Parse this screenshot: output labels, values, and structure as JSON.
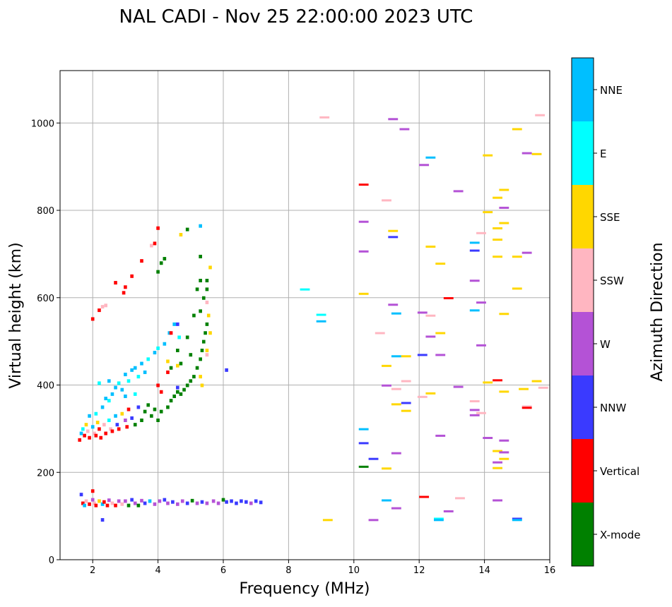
{
  "chart_data": {
    "type": "scatter",
    "title": "NAL CADI - Nov 25 22:00:00 2023 UTC",
    "xlabel": "Frequency (MHz)",
    "ylabel": "Virtual height (km)",
    "xlim": [
      1,
      16
    ],
    "ylim": [
      0,
      1120
    ],
    "xticks": [
      2,
      4,
      6,
      8,
      10,
      12,
      14,
      16
    ],
    "yticks": [
      0,
      200,
      400,
      600,
      800,
      1000
    ],
    "grid": true,
    "colorbar": {
      "label": "Azimuth Direction",
      "categories": [
        "X-mode",
        "Vertical",
        "NNW",
        "W",
        "SSW",
        "SSE",
        "E",
        "NNE"
      ],
      "colors": [
        "#008000",
        "#ff0000",
        "#3a3aff",
        "#b452d6",
        "#ffb6c1",
        "#ffd700",
        "#00ffff",
        "#00bfff"
      ]
    },
    "point_fields": [
      "frequency_mhz",
      "height_km",
      "direction_index"
    ],
    "points": [
      [
        1.65,
        150,
        2
      ],
      [
        1.7,
        130,
        1
      ],
      [
        1.75,
        125,
        7
      ],
      [
        1.8,
        135,
        4
      ],
      [
        1.9,
        128,
        1
      ],
      [
        2.0,
        138,
        3
      ],
      [
        2.05,
        130,
        4
      ],
      [
        2.1,
        125,
        1
      ],
      [
        2.2,
        135,
        5
      ],
      [
        2.3,
        128,
        7
      ],
      [
        2.35,
        133,
        1
      ],
      [
        2.45,
        125,
        1
      ],
      [
        2.5,
        137,
        3
      ],
      [
        2.6,
        130,
        4
      ],
      [
        2.7,
        125,
        1
      ],
      [
        2.8,
        135,
        3
      ],
      [
        2.9,
        128,
        4
      ],
      [
        3.0,
        135,
        3
      ],
      [
        3.1,
        125,
        0
      ],
      [
        3.2,
        138,
        2
      ],
      [
        3.3,
        130,
        3
      ],
      [
        3.4,
        125,
        0
      ],
      [
        3.5,
        136,
        3
      ],
      [
        3.6,
        130,
        2
      ],
      [
        3.75,
        135,
        7
      ],
      [
        3.9,
        128,
        3
      ],
      [
        4.05,
        135,
        3
      ],
      [
        4.2,
        138,
        2
      ],
      [
        4.3,
        130,
        3
      ],
      [
        4.45,
        133,
        2
      ],
      [
        4.6,
        128,
        3
      ],
      [
        4.75,
        135,
        3
      ],
      [
        4.9,
        130,
        2
      ],
      [
        5.05,
        136,
        0
      ],
      [
        5.2,
        130,
        3
      ],
      [
        5.35,
        133,
        2
      ],
      [
        5.5,
        130,
        3
      ],
      [
        5.7,
        135,
        3
      ],
      [
        5.85,
        130,
        3
      ],
      [
        6.0,
        138,
        0
      ],
      [
        6.1,
        133,
        2
      ],
      [
        6.25,
        135,
        2
      ],
      [
        6.4,
        130,
        2
      ],
      [
        6.55,
        135,
        2
      ],
      [
        6.7,
        133,
        2
      ],
      [
        6.85,
        130,
        3
      ],
      [
        7.0,
        135,
        2
      ],
      [
        7.15,
        132,
        2
      ],
      [
        2.3,
        92,
        2
      ],
      [
        2.0,
        158,
        1
      ],
      [
        1.6,
        275,
        1
      ],
      [
        1.65,
        290,
        7
      ],
      [
        1.7,
        300,
        6
      ],
      [
        1.75,
        285,
        1
      ],
      [
        1.8,
        310,
        5
      ],
      [
        1.85,
        295,
        4
      ],
      [
        1.9,
        280,
        1
      ],
      [
        2.0,
        305,
        7
      ],
      [
        2.05,
        290,
        4
      ],
      [
        2.1,
        285,
        1
      ],
      [
        2.15,
        315,
        5
      ],
      [
        2.2,
        300,
        1
      ],
      [
        2.25,
        280,
        1
      ],
      [
        2.35,
        310,
        4
      ],
      [
        2.4,
        290,
        1
      ],
      [
        2.5,
        320,
        6
      ],
      [
        2.55,
        300,
        4
      ],
      [
        2.6,
        295,
        1
      ],
      [
        2.7,
        330,
        7
      ],
      [
        2.75,
        310,
        2
      ],
      [
        2.8,
        300,
        1
      ],
      [
        2.9,
        335,
        5
      ],
      [
        3.0,
        320,
        3
      ],
      [
        3.05,
        305,
        1
      ],
      [
        3.1,
        345,
        1
      ],
      [
        3.2,
        325,
        2
      ],
      [
        3.3,
        310,
        0
      ],
      [
        3.4,
        350,
        2
      ],
      [
        3.5,
        320,
        0
      ],
      [
        3.6,
        340,
        0
      ],
      [
        3.7,
        355,
        0
      ],
      [
        3.8,
        330,
        0
      ],
      [
        3.9,
        345,
        0
      ],
      [
        4.0,
        320,
        0
      ],
      [
        1.9,
        330,
        7
      ],
      [
        2.1,
        335,
        6
      ],
      [
        2.3,
        350,
        7
      ],
      [
        2.4,
        370,
        7
      ],
      [
        2.5,
        365,
        6
      ],
      [
        2.6,
        380,
        7
      ],
      [
        2.7,
        395,
        7
      ],
      [
        2.8,
        405,
        6
      ],
      [
        2.9,
        390,
        7
      ],
      [
        3.0,
        425,
        7
      ],
      [
        3.1,
        410,
        6
      ],
      [
        3.2,
        435,
        7
      ],
      [
        3.3,
        440,
        7
      ],
      [
        3.4,
        420,
        6
      ],
      [
        3.5,
        450,
        7
      ],
      [
        3.6,
        430,
        7
      ],
      [
        3.7,
        460,
        6
      ],
      [
        3.9,
        475,
        7
      ],
      [
        4.0,
        485,
        6
      ],
      [
        4.2,
        495,
        7
      ],
      [
        4.35,
        520,
        7
      ],
      [
        4.5,
        540,
        7
      ],
      [
        4.65,
        510,
        6
      ],
      [
        2.2,
        405,
        6
      ],
      [
        2.5,
        410,
        7
      ],
      [
        3.0,
        375,
        7
      ],
      [
        3.3,
        380,
        6
      ],
      [
        4.1,
        340,
        0
      ],
      [
        4.3,
        350,
        0
      ],
      [
        4.4,
        365,
        0
      ],
      [
        4.5,
        375,
        0
      ],
      [
        4.6,
        385,
        0
      ],
      [
        4.7,
        380,
        0
      ],
      [
        4.8,
        390,
        0
      ],
      [
        4.9,
        400,
        0
      ],
      [
        5.0,
        410,
        0
      ],
      [
        5.1,
        420,
        0
      ],
      [
        5.2,
        440,
        0
      ],
      [
        5.3,
        460,
        0
      ],
      [
        5.35,
        480,
        0
      ],
      [
        5.4,
        500,
        0
      ],
      [
        5.45,
        520,
        0
      ],
      [
        5.5,
        540,
        0
      ],
      [
        5.3,
        570,
        0
      ],
      [
        5.4,
        600,
        0
      ],
      [
        5.3,
        640,
        0
      ],
      [
        5.2,
        620,
        0
      ],
      [
        5.5,
        620,
        0
      ],
      [
        5.1,
        560,
        0
      ],
      [
        4.9,
        510,
        0
      ],
      [
        4.6,
        480,
        0
      ],
      [
        4.4,
        440,
        0
      ],
      [
        4.7,
        450,
        0
      ],
      [
        5.0,
        470,
        0
      ],
      [
        5.3,
        420,
        5
      ],
      [
        5.5,
        480,
        5
      ],
      [
        5.6,
        520,
        5
      ],
      [
        5.35,
        400,
        5
      ],
      [
        5.55,
        560,
        5
      ],
      [
        5.6,
        670,
        5
      ],
      [
        4.6,
        445,
        5
      ],
      [
        4.3,
        455,
        5
      ],
      [
        5.5,
        470,
        4
      ],
      [
        5.5,
        590,
        4
      ],
      [
        2.0,
        552,
        1
      ],
      [
        2.2,
        572,
        1
      ],
      [
        2.3,
        580,
        4
      ],
      [
        2.4,
        583,
        4
      ],
      [
        2.7,
        635,
        1
      ],
      [
        2.95,
        612,
        1
      ],
      [
        3.0,
        625,
        1
      ],
      [
        3.2,
        650,
        1
      ],
      [
        3.5,
        685,
        1
      ],
      [
        3.8,
        720,
        4
      ],
      [
        3.9,
        725,
        1
      ],
      [
        4.0,
        760,
        1
      ],
      [
        4.2,
        690,
        0
      ],
      [
        4.1,
        680,
        0
      ],
      [
        4.0,
        660,
        0
      ],
      [
        4.7,
        745,
        5
      ],
      [
        4.9,
        757,
        0
      ],
      [
        5.3,
        765,
        7
      ],
      [
        5.3,
        695,
        0
      ],
      [
        5.5,
        640,
        0
      ],
      [
        4.6,
        540,
        2
      ],
      [
        4.4,
        520,
        1
      ],
      [
        4.0,
        400,
        1
      ],
      [
        4.3,
        430,
        1
      ],
      [
        4.1,
        385,
        1
      ],
      [
        4.6,
        395,
        2
      ],
      [
        6.1,
        435,
        2
      ],
      [
        8.5,
        618,
        6
      ],
      [
        9.0,
        560,
        6
      ],
      [
        9.0,
        545,
        7
      ],
      [
        9.2,
        90,
        5
      ],
      [
        9.1,
        1012,
        4
      ],
      [
        10.3,
        858,
        1
      ],
      [
        10.3,
        773,
        3
      ],
      [
        10.3,
        705,
        3
      ],
      [
        10.3,
        608,
        5
      ],
      [
        10.3,
        298,
        7
      ],
      [
        10.3,
        266,
        2
      ],
      [
        10.3,
        212,
        0
      ],
      [
        10.6,
        230,
        2
      ],
      [
        10.6,
        90,
        3
      ],
      [
        10.8,
        518,
        4
      ],
      [
        11.0,
        822,
        4
      ],
      [
        11.0,
        443,
        5
      ],
      [
        11.0,
        398,
        3
      ],
      [
        11.0,
        208,
        5
      ],
      [
        11.0,
        135,
        7
      ],
      [
        11.2,
        1008,
        3
      ],
      [
        11.2,
        752,
        5
      ],
      [
        11.2,
        738,
        2
      ],
      [
        11.2,
        583,
        3
      ],
      [
        11.3,
        563,
        7
      ],
      [
        11.3,
        465,
        7
      ],
      [
        11.3,
        390,
        4
      ],
      [
        11.3,
        355,
        5
      ],
      [
        11.3,
        243,
        3
      ],
      [
        11.3,
        117,
        3
      ],
      [
        11.55,
        985,
        3
      ],
      [
        11.6,
        465,
        5
      ],
      [
        11.6,
        408,
        4
      ],
      [
        11.6,
        358,
        2
      ],
      [
        11.6,
        340,
        5
      ],
      [
        12.15,
        903,
        3
      ],
      [
        12.35,
        920,
        7
      ],
      [
        12.1,
        565,
        3
      ],
      [
        12.35,
        558,
        4
      ],
      [
        12.1,
        468,
        2
      ],
      [
        12.35,
        510,
        3
      ],
      [
        12.1,
        372,
        4
      ],
      [
        12.35,
        380,
        5
      ],
      [
        12.15,
        143,
        1
      ],
      [
        12.65,
        677,
        5
      ],
      [
        12.35,
        716,
        5
      ],
      [
        12.65,
        518,
        5
      ],
      [
        12.65,
        468,
        3
      ],
      [
        12.65,
        283,
        3
      ],
      [
        12.6,
        93,
        6
      ],
      [
        12.6,
        90,
        7
      ],
      [
        12.9,
        598,
        1
      ],
      [
        12.9,
        110,
        3
      ],
      [
        13.2,
        843,
        3
      ],
      [
        13.2,
        395,
        3
      ],
      [
        13.25,
        140,
        4
      ],
      [
        13.7,
        725,
        7
      ],
      [
        13.7,
        707,
        2
      ],
      [
        13.7,
        638,
        3
      ],
      [
        13.7,
        570,
        7
      ],
      [
        13.7,
        362,
        4
      ],
      [
        13.7,
        342,
        3
      ],
      [
        13.7,
        330,
        3
      ],
      [
        13.9,
        747,
        4
      ],
      [
        13.9,
        588,
        3
      ],
      [
        13.9,
        490,
        3
      ],
      [
        13.9,
        335,
        4
      ],
      [
        14.1,
        925,
        5
      ],
      [
        14.1,
        795,
        5
      ],
      [
        14.1,
        405,
        5
      ],
      [
        14.1,
        278,
        3
      ],
      [
        14.4,
        828,
        5
      ],
      [
        14.4,
        758,
        5
      ],
      [
        14.4,
        732,
        5
      ],
      [
        14.4,
        693,
        5
      ],
      [
        14.4,
        410,
        1
      ],
      [
        14.4,
        248,
        5
      ],
      [
        14.4,
        222,
        3
      ],
      [
        14.4,
        209,
        5
      ],
      [
        14.4,
        135,
        3
      ],
      [
        14.6,
        846,
        5
      ],
      [
        14.6,
        805,
        3
      ],
      [
        14.6,
        770,
        5
      ],
      [
        14.6,
        562,
        5
      ],
      [
        14.6,
        384,
        5
      ],
      [
        14.6,
        272,
        3
      ],
      [
        14.6,
        245,
        3
      ],
      [
        14.6,
        230,
        5
      ],
      [
        15.0,
        985,
        5
      ],
      [
        15.0,
        693,
        5
      ],
      [
        15.0,
        620,
        5
      ],
      [
        15.0,
        93,
        2
      ],
      [
        15.0,
        90,
        7
      ],
      [
        15.3,
        930,
        3
      ],
      [
        15.3,
        702,
        3
      ],
      [
        15.2,
        390,
        5
      ],
      [
        15.3,
        350,
        4
      ],
      [
        15.3,
        347,
        1
      ],
      [
        15.6,
        928,
        5
      ],
      [
        15.6,
        408,
        5
      ],
      [
        15.8,
        393,
        4
      ],
      [
        15.7,
        1017,
        4
      ]
    ]
  }
}
